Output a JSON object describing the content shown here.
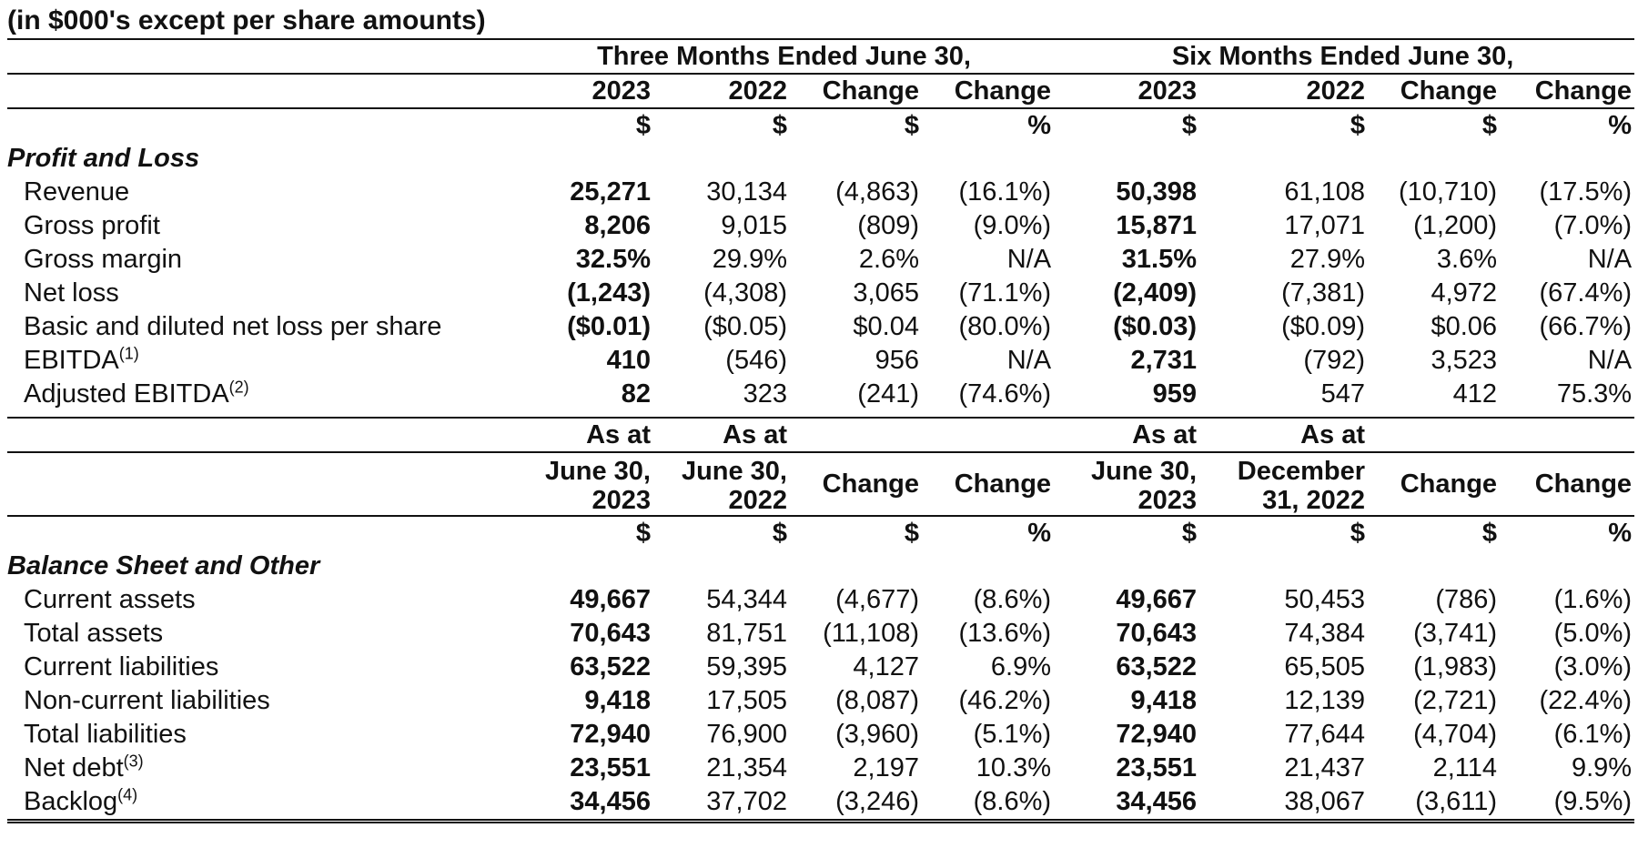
{
  "caption": "(in $000's except per share amounts)",
  "pl_header": {
    "group_three": "Three Months Ended June 30,",
    "group_six": "Six Months Ended June 30,",
    "columns": [
      "2023",
      "2022",
      "Change",
      "Change",
      "2023",
      "2022",
      "Change",
      "Change"
    ],
    "units": [
      "$",
      "$",
      "$",
      "%",
      "$",
      "$",
      "$",
      "%"
    ]
  },
  "pl_section_title": "Profit and Loss",
  "pl_rows": [
    {
      "label": "Revenue",
      "sup": "",
      "values": [
        "25,271",
        "30,134",
        "(4,863)",
        "(16.1%)",
        "50,398",
        "61,108",
        "(10,710)",
        "(17.5%)"
      ]
    },
    {
      "label": "Gross profit",
      "sup": "",
      "values": [
        "8,206",
        "9,015",
        "(809)",
        "(9.0%)",
        "15,871",
        "17,071",
        "(1,200)",
        "(7.0%)"
      ]
    },
    {
      "label": "Gross margin",
      "sup": "",
      "values": [
        "32.5%",
        "29.9%",
        "2.6%",
        "N/A",
        "31.5%",
        "27.9%",
        "3.6%",
        "N/A"
      ]
    },
    {
      "label": "Net loss",
      "sup": "",
      "values": [
        "(1,243)",
        "(4,308)",
        "3,065",
        "(71.1%)",
        "(2,409)",
        "(7,381)",
        "4,972",
        "(67.4%)"
      ]
    },
    {
      "label": "Basic and diluted net loss per share",
      "sup": "",
      "values": [
        "($0.01)",
        "($0.05)",
        "$0.04",
        "(80.0%)",
        "($0.03)",
        "($0.09)",
        "$0.06",
        "(66.7%)"
      ]
    },
    {
      "label": "EBITDA",
      "sup": "(1)",
      "values": [
        "410",
        "(546)",
        "956",
        "N/A",
        "2,731",
        "(792)",
        "3,523",
        "N/A"
      ]
    },
    {
      "label": "Adjusted EBITDA",
      "sup": "(2)",
      "values": [
        "82",
        "323",
        "(241)",
        "(74.6%)",
        "959",
        "547",
        "412",
        "75.3%"
      ]
    }
  ],
  "bs_header": {
    "as_at": "As at",
    "col_a": [
      "June 30,",
      "2023"
    ],
    "col_b": [
      "June 30,",
      "2022"
    ],
    "col_e": [
      "June 30,",
      "2023"
    ],
    "col_f": [
      "December",
      "31, 2022"
    ],
    "change": "Change",
    "units": [
      "$",
      "$",
      "$",
      "%",
      "$",
      "$",
      "$",
      "%"
    ]
  },
  "bs_section_title": "Balance Sheet and Other",
  "bs_rows": [
    {
      "label": "Current assets",
      "sup": "",
      "values": [
        "49,667",
        "54,344",
        "(4,677)",
        "(8.6%)",
        "49,667",
        "50,453",
        "(786)",
        "(1.6%)"
      ]
    },
    {
      "label": "Total assets",
      "sup": "",
      "values": [
        "70,643",
        "81,751",
        "(11,108)",
        "(13.6%)",
        "70,643",
        "74,384",
        "(3,741)",
        "(5.0%)"
      ]
    },
    {
      "label": "Current liabilities",
      "sup": "",
      "values": [
        "63,522",
        "59,395",
        "4,127",
        "6.9%",
        "63,522",
        "65,505",
        "(1,983)",
        "(3.0%)"
      ]
    },
    {
      "label": "Non-current liabilities",
      "sup": "",
      "values": [
        "9,418",
        "17,505",
        "(8,087)",
        "(46.2%)",
        "9,418",
        "12,139",
        "(2,721)",
        "(22.4%)"
      ]
    },
    {
      "label": "Total liabilities",
      "sup": "",
      "values": [
        "72,940",
        "76,900",
        "(3,960)",
        "(5.1%)",
        "72,940",
        "77,644",
        "(4,704)",
        "(6.1%)"
      ]
    },
    {
      "label": "Net debt",
      "sup": "(3)",
      "values": [
        "23,551",
        "21,354",
        "2,197",
        "10.3%",
        "23,551",
        "21,437",
        "2,114",
        "9.9%"
      ]
    },
    {
      "label": "Backlog",
      "sup": "(4)",
      "values": [
        "34,456",
        "37,702",
        "(3,246)",
        "(8.6%)",
        "34,456",
        "38,067",
        "(3,611)",
        "(9.5%)"
      ]
    }
  ]
}
